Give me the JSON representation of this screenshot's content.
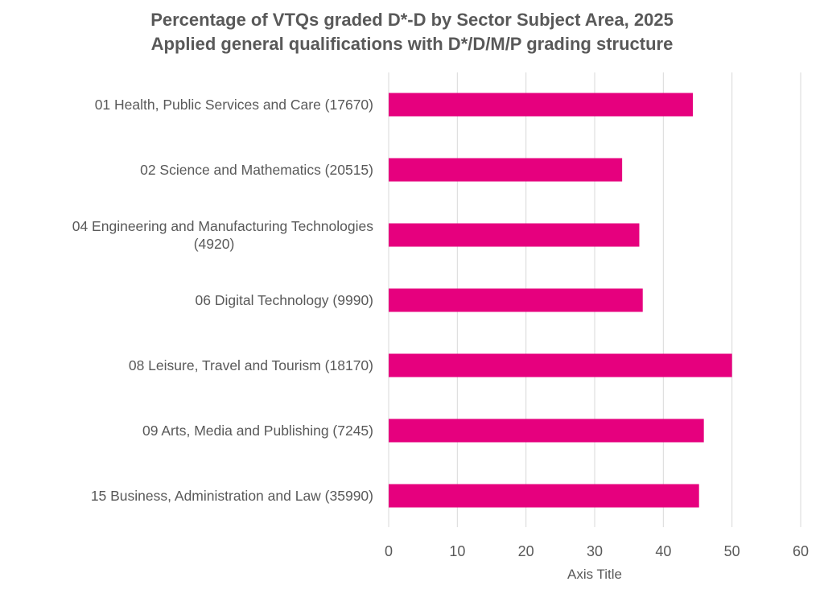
{
  "chart_data": {
    "type": "bar",
    "orientation": "horizontal",
    "title": "Percentage of VTQs graded D*-D by Sector Subject Area, 2025",
    "subtitle": "Applied general qualifications with D*/D/M/P grading structure",
    "categories": [
      [
        "01 Health, Public Services and Care (17670)"
      ],
      [
        "02 Science and Mathematics (20515)"
      ],
      [
        "04 Engineering and Manufacturing Technologies",
        "(4920)"
      ],
      [
        "06 Digital Technology (9990)"
      ],
      [
        "08 Leisure, Travel and Tourism (18170)"
      ],
      [
        "09 Arts, Media and Publishing (7245)"
      ],
      [
        "15 Business, Administration and Law (35990)"
      ]
    ],
    "values": [
      44.3,
      34.0,
      36.5,
      37.0,
      50.0,
      45.9,
      45.2
    ],
    "xlabel": "Axis Title",
    "xlim": [
      0,
      60
    ],
    "xticks": [
      0,
      10,
      20,
      30,
      40,
      50,
      60
    ],
    "grid": true,
    "bar_color": "#E6007E",
    "grid_color": "#D9D9D9",
    "text_color": "#595959"
  }
}
